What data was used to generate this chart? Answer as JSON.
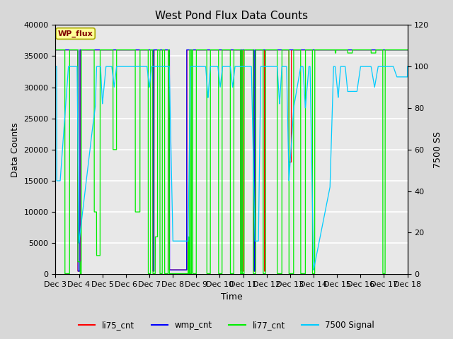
{
  "title": "West Pond Flux Data Counts",
  "xlabel": "Time",
  "ylabel_left": "Data Counts",
  "ylabel_right": "7500 SS",
  "xlim_days": [
    3,
    18
  ],
  "ylim_left": [
    0,
    40000
  ],
  "ylim_right": [
    0,
    120
  ],
  "yticks_left": [
    0,
    5000,
    10000,
    15000,
    20000,
    25000,
    30000,
    35000,
    40000
  ],
  "yticks_right": [
    0,
    20,
    40,
    60,
    80,
    100,
    120
  ],
  "xtick_labels": [
    "Dec 3",
    "Dec 4",
    "Dec 5",
    "Dec 6",
    "Dec 7",
    "Dec 8",
    "Dec 9",
    "Dec 10",
    "Dec 11",
    "Dec 12",
    "Dec 13",
    "Dec 14",
    "Dec 15",
    "Dec 16",
    "Dec 17",
    "Dec 18"
  ],
  "xtick_days": [
    3,
    4,
    5,
    6,
    7,
    8,
    9,
    10,
    11,
    12,
    13,
    14,
    15,
    16,
    17,
    18
  ],
  "bg_color": "#d8d8d8",
  "plot_bg_color": "#e8e8e8",
  "wp_flux_box_color": "#ffff99",
  "wp_flux_text_color": "#800000",
  "grid_color": "#ffffff",
  "legend_colors": [
    "#ff0000",
    "#0000ff",
    "#00cc00",
    "#00cccc"
  ],
  "signal_7500_scale": 333.33,
  "li75_color": "#ff0000",
  "wmp_color": "#0000ff",
  "li77_color": "#00ee00",
  "sig_color": "#00ccff"
}
